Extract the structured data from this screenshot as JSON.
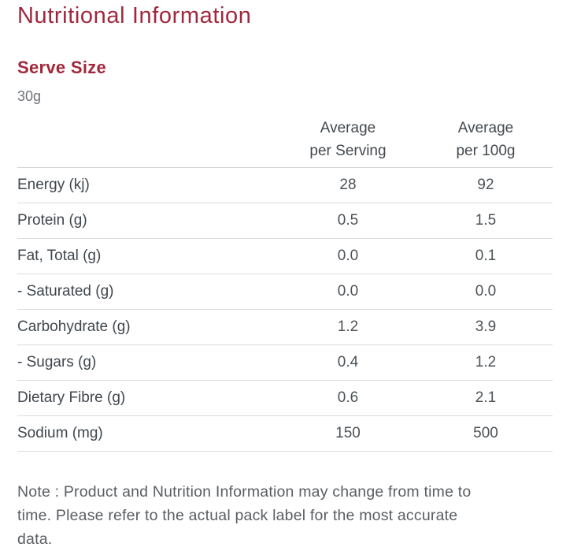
{
  "page_title": "Nutritional Information",
  "serve_size": {
    "heading": "Serve Size",
    "value": "30g"
  },
  "table": {
    "columns": [
      {
        "header_line1": "",
        "header_line2": ""
      },
      {
        "header_line1": "Average",
        "header_line2": "per Serving"
      },
      {
        "header_line1": "Average",
        "header_line2": "per 100g"
      }
    ],
    "rows": [
      {
        "label": "Energy (kj)",
        "per_serving": "28",
        "per_100g": "92"
      },
      {
        "label": "Protein (g)",
        "per_serving": "0.5",
        "per_100g": "1.5"
      },
      {
        "label": "Fat, Total (g)",
        "per_serving": "0.0",
        "per_100g": "0.1"
      },
      {
        "label": "- Saturated (g)",
        "per_serving": "0.0",
        "per_100g": "0.0"
      },
      {
        "label": "Carbohydrate (g)",
        "per_serving": "1.2",
        "per_100g": "3.9"
      },
      {
        "label": "- Sugars (g)",
        "per_serving": "0.4",
        "per_100g": "1.2"
      },
      {
        "label": "Dietary Fibre (g)",
        "per_serving": "0.6",
        "per_100g": "2.1"
      },
      {
        "label": "Sodium (mg)",
        "per_serving": "150",
        "per_100g": "500"
      }
    ]
  },
  "note_lines": [
    "Note : Product and Nutrition Information may change from time to",
    "time. Please refer to the actual pack label for the most accurate",
    "data."
  ],
  "note_text": "Note : Product and Nutrition Information may change from time to time. Please refer to the actual pack label for the most accurate data.",
  "colors": {
    "heading_red": "#A1283C",
    "body_text": "#3F464C",
    "value_text": "#4C5257",
    "muted_text": "#6F7377",
    "note_text": "#5A5E62",
    "divider": "#D8D8D8",
    "background": "#FFFFFF"
  }
}
